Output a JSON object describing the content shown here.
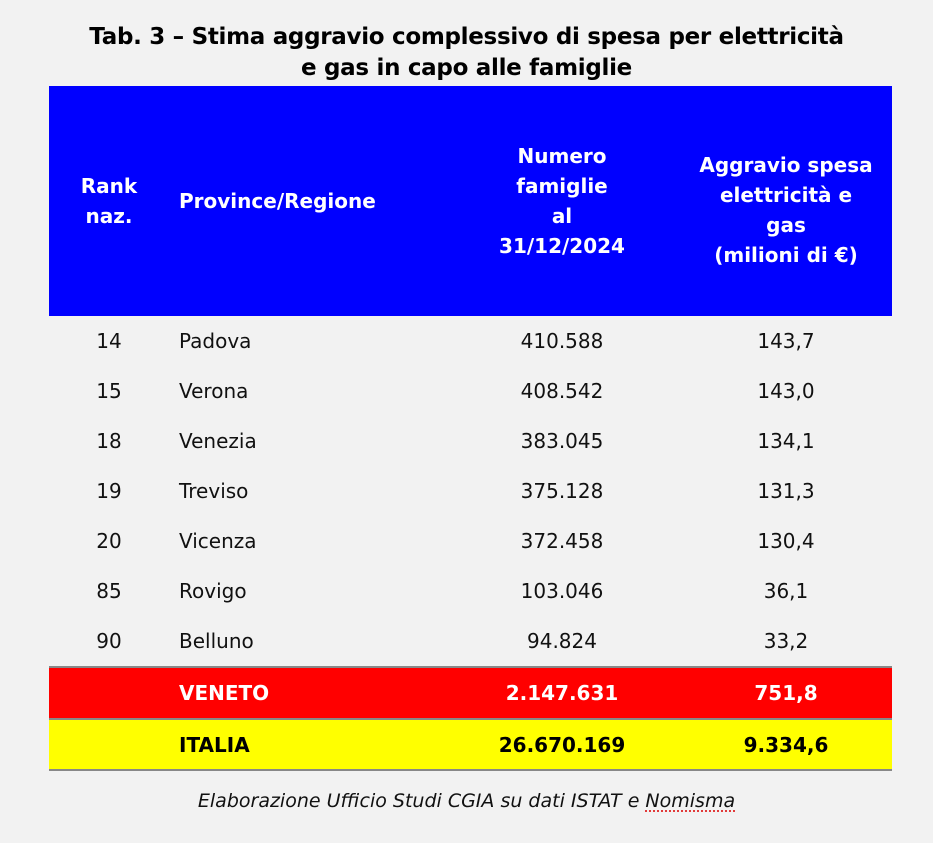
{
  "title_line1": "Tab. 3 – Stima aggravio complessivo di spesa per elettricità",
  "title_line2": "e gas in capo alle famiglie",
  "headers": {
    "rank": [
      "Rank",
      "naz."
    ],
    "province": "Province/Regione",
    "numero": [
      "Numero",
      "famiglie",
      "al",
      "31/12/2024"
    ],
    "aggravio": [
      "Aggravio spesa",
      "elettricità e",
      "gas",
      "(milioni di €)"
    ]
  },
  "rows": [
    {
      "rank": "14",
      "province": "Padova",
      "famiglie": "410.588",
      "aggravio": "143,7"
    },
    {
      "rank": "15",
      "province": "Verona",
      "famiglie": "408.542",
      "aggravio": "143,0"
    },
    {
      "rank": "18",
      "province": "Venezia",
      "famiglie": "383.045",
      "aggravio": "134,1"
    },
    {
      "rank": "19",
      "province": "Treviso",
      "famiglie": "375.128",
      "aggravio": "131,3"
    },
    {
      "rank": "20",
      "province": "Vicenza",
      "famiglie": "372.458",
      "aggravio": "130,4"
    },
    {
      "rank": "85",
      "province": "Rovigo",
      "famiglie": "103.046",
      "aggravio": "36,1"
    },
    {
      "rank": "90",
      "province": "Belluno",
      "famiglie": "94.824",
      "aggravio": "33,2"
    }
  ],
  "veneto": {
    "label": "VENETO",
    "famiglie": "2.147.631",
    "aggravio": "751,8"
  },
  "italia": {
    "label": "ITALIA",
    "famiglie": "26.670.169",
    "aggravio": "9.334,6"
  },
  "footer": {
    "text": "Elaborazione Ufficio Studi CGIA su dati ISTAT e ",
    "underlined": "Nomisma"
  },
  "colors": {
    "header": "#0000ff",
    "veneto": "#ff0000",
    "italia": "#ffff00"
  }
}
